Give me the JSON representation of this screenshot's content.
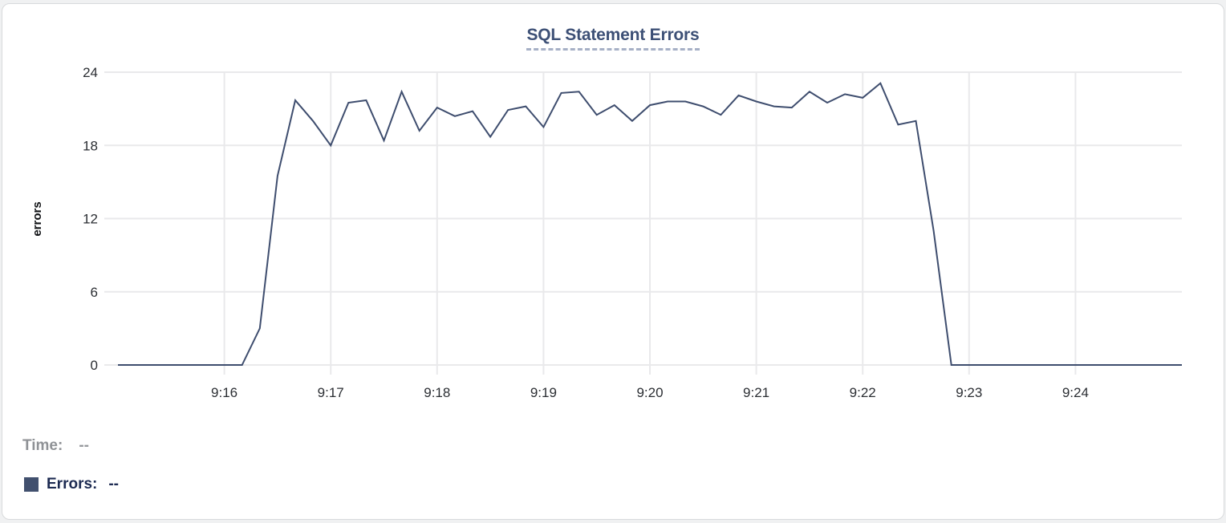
{
  "title": {
    "text": "SQL Statement Errors"
  },
  "chart_data": {
    "type": "line",
    "title": "SQL Statement Errors",
    "xlabel": "",
    "ylabel": "errors",
    "grid": true,
    "legend_position": "none",
    "ylim": [
      0,
      24
    ],
    "y_ticks": [
      0,
      6,
      12,
      18,
      24
    ],
    "x_tick_labels": [
      "9:16",
      "9:17",
      "9:18",
      "9:19",
      "9:20",
      "9:21",
      "9:22",
      "9:23",
      "9:24"
    ],
    "x_tick_seconds": [
      60,
      120,
      180,
      240,
      300,
      360,
      420,
      480,
      540
    ],
    "x_domain_seconds": [
      0,
      600
    ],
    "x_start_time": "9:15:00",
    "x_end_time": "9:25:00",
    "point_interval_seconds": 10,
    "series": [
      {
        "name": "Errors",
        "color": "#3e4d6e",
        "values": [
          0,
          0,
          0,
          0,
          0,
          0,
          0,
          0,
          3,
          15.5,
          21.7,
          20,
          18,
          21.5,
          21.7,
          18.4,
          22.4,
          19.2,
          21.1,
          20.4,
          20.8,
          18.7,
          20.9,
          21.2,
          19.5,
          22.3,
          22.4,
          20.5,
          21.3,
          20,
          21.3,
          21.6,
          21.6,
          21.2,
          20.5,
          22.1,
          21.6,
          21.2,
          21.1,
          22.4,
          21.5,
          22.2,
          21.9,
          23.1,
          19.7,
          20,
          11,
          0,
          0,
          0,
          0,
          0,
          0,
          0,
          0,
          0,
          0,
          0,
          0,
          0,
          0
        ]
      }
    ]
  },
  "hover_readout": {
    "time_label": "Time:",
    "time_value": "--",
    "series_label": "Errors:",
    "series_value": "--",
    "swatch_color": "#41506e"
  },
  "colors": {
    "title": "#3d5076",
    "title_underline": "#a6b0c6",
    "line": "#3e4d6e",
    "grid": "#e9e9eb",
    "tick_text": "#2b2e33",
    "axis_title_text": "#0f1114",
    "time_label": "#8f9296",
    "errors_label": "#1d2b52",
    "card_border": "#d8dadc",
    "page_background": "#f0f1f2"
  }
}
